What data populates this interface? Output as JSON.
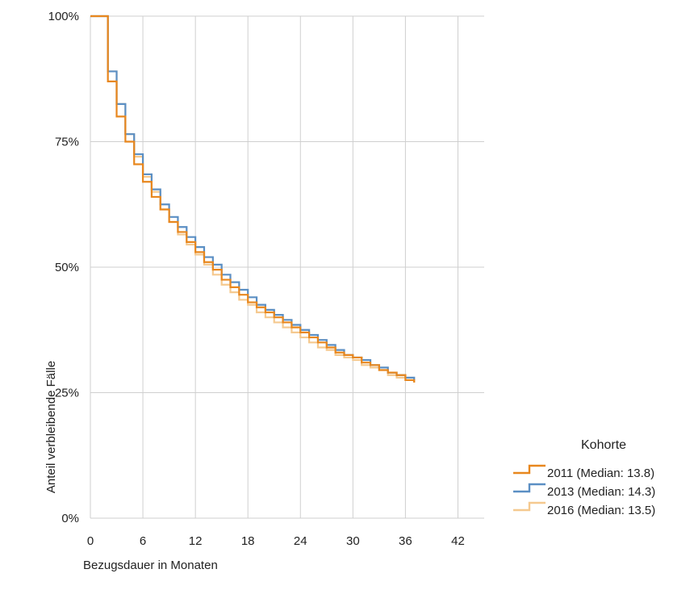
{
  "chart_data": {
    "type": "line",
    "title": "",
    "xlabel": "Bezugsdauer in Monaten",
    "ylabel": "Anteil verbleibende Fälle",
    "xlim": [
      0,
      45
    ],
    "ylim": [
      0,
      100
    ],
    "xticks": [
      0,
      6,
      12,
      18,
      24,
      30,
      36,
      42
    ],
    "xtick_labels": [
      "0",
      "6",
      "12",
      "18",
      "24",
      "30",
      "36",
      "42"
    ],
    "yticks": [
      0,
      25,
      50,
      75,
      100
    ],
    "ytick_labels": [
      "0%",
      "25%",
      "50%",
      "75%",
      "100%"
    ],
    "grid": true,
    "legend": {
      "title": "Kohorte",
      "placement": "right"
    },
    "series": [
      {
        "name": "2016 (Median: 13.5)",
        "color": "#f5c98f",
        "step": "post",
        "x": [
          0,
          1,
          2,
          3,
          4,
          5,
          6,
          7,
          8,
          9,
          10,
          11,
          12,
          13,
          14,
          15,
          16,
          17,
          18,
          19,
          20,
          21,
          22,
          23,
          24,
          25,
          26,
          27,
          28,
          29,
          30,
          31,
          32,
          33,
          34,
          35,
          36,
          37
        ],
        "y": [
          100,
          100,
          89,
          82.5,
          76.5,
          72,
          68,
          65,
          61.5,
          59,
          56.5,
          54.5,
          52.5,
          50.5,
          48.5,
          46.5,
          45,
          43.5,
          42.5,
          41,
          40,
          39,
          38,
          37,
          36,
          35,
          34,
          33.5,
          32.5,
          32,
          31.5,
          30.5,
          30,
          29.5,
          28.5,
          28,
          27.5,
          27
        ]
      },
      {
        "name": "2013 (Median: 14.3)",
        "color": "#5b8fc4",
        "step": "post",
        "x": [
          0,
          1,
          2,
          3,
          4,
          5,
          6,
          7,
          8,
          9,
          10,
          11,
          12,
          13,
          14,
          15,
          16,
          17,
          18,
          19,
          20,
          21,
          22,
          23,
          24,
          25,
          26,
          27,
          28,
          29,
          30,
          31,
          32,
          33,
          34,
          35,
          36,
          37
        ],
        "y": [
          100,
          100,
          89,
          82.5,
          76.5,
          72.5,
          68.5,
          65.5,
          62.5,
          60,
          58,
          56,
          54,
          52,
          50.5,
          48.5,
          47,
          45.5,
          44,
          42.5,
          41.5,
          40.5,
          39.5,
          38.5,
          37.5,
          36.5,
          35.5,
          34.5,
          33.5,
          32.5,
          32,
          31.5,
          30.5,
          30,
          29,
          28.5,
          28,
          27.5
        ]
      },
      {
        "name": "2011 (Median: 13.8)",
        "color": "#e8871e",
        "step": "post",
        "x": [
          0,
          1,
          2,
          3,
          4,
          5,
          6,
          7,
          8,
          9,
          10,
          11,
          12,
          13,
          14,
          15,
          16,
          17,
          18,
          19,
          20,
          21,
          22,
          23,
          24,
          25,
          26,
          27,
          28,
          29,
          30,
          31,
          32,
          33,
          34,
          35,
          36,
          37
        ],
        "y": [
          100,
          100,
          87,
          80,
          75,
          70.5,
          67,
          64,
          61.5,
          59,
          57,
          55,
          53,
          51,
          49.5,
          47.5,
          46,
          44.5,
          43,
          42,
          41,
          40,
          39,
          38,
          37,
          36,
          35,
          34,
          33,
          32.5,
          32,
          31,
          30.5,
          29.5,
          29,
          28.5,
          27.5,
          27
        ]
      }
    ]
  }
}
